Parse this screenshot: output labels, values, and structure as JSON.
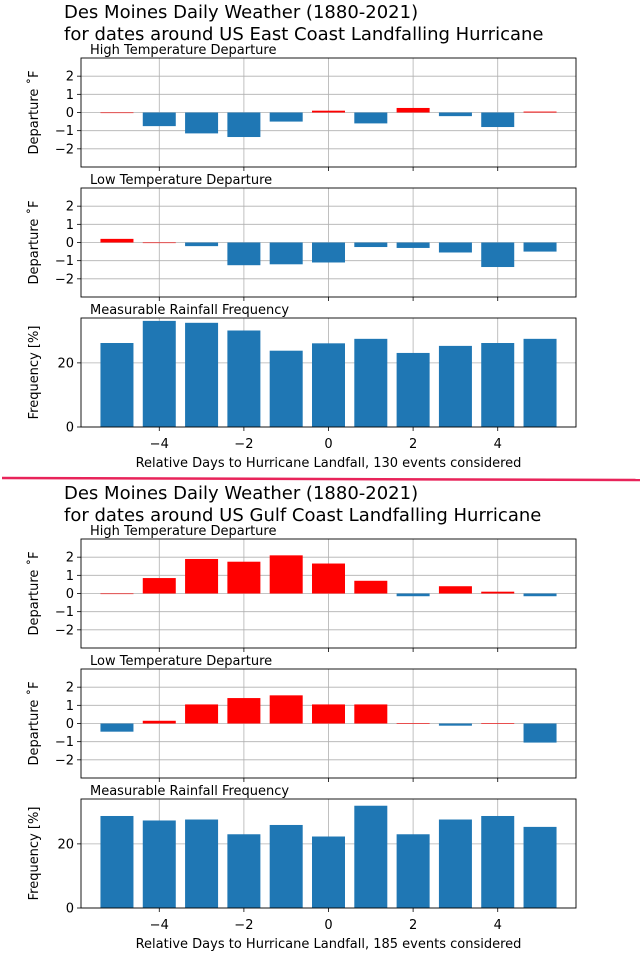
{
  "colors": {
    "positive": "#ff0000",
    "negative": "#1f77b4",
    "rain": "#1f77b4",
    "divider": "#e8245a",
    "grid": "#b0b0b0"
  },
  "chart_data": [
    {
      "title_line1": "Des Moines Daily Weather (1880-2021)",
      "title_line2": "for dates around US East Coast Landfalling Hurricane",
      "xlabel": "Relative Days to Hurricane Landfall, 130 events considered",
      "xticks": [
        "−4",
        "−2",
        "0",
        "2",
        "4"
      ],
      "panels": [
        {
          "type": "bar",
          "subtitle": "High Temperature Departure",
          "ylabel": "Departure ˚F",
          "ylim": [
            -3,
            3
          ],
          "yticks": [
            "−2",
            "−1",
            "0",
            "1",
            "2"
          ],
          "colored": true,
          "x": [
            -5,
            -4,
            -3,
            -2,
            -1,
            0,
            1,
            2,
            3,
            4,
            5
          ],
          "values": [
            0,
            -0.75,
            -1.15,
            -1.35,
            -0.5,
            0.1,
            -0.6,
            0.25,
            -0.2,
            -0.8,
            0.05
          ]
        },
        {
          "type": "bar",
          "subtitle": "Low Temperature Departure",
          "ylabel": "Departure ˚F",
          "ylim": [
            -3,
            3
          ],
          "yticks": [
            "−2",
            "−1",
            "0",
            "1",
            "2"
          ],
          "colored": true,
          "x": [
            -5,
            -4,
            -3,
            -2,
            -1,
            0,
            1,
            2,
            3,
            4,
            5
          ],
          "values": [
            0.2,
            0,
            -0.2,
            -1.25,
            -1.2,
            -1.1,
            -0.25,
            -0.3,
            -0.55,
            -1.35,
            -0.5
          ]
        },
        {
          "type": "bar",
          "subtitle": "Measurable Rainfall Frequency",
          "ylabel": "Frequency [%]",
          "ylim": [
            0,
            34
          ],
          "yticks": [
            "0",
            "20"
          ],
          "colored": false,
          "x": [
            -5,
            -4,
            -3,
            -2,
            -1,
            0,
            1,
            2,
            3,
            4,
            5
          ],
          "values": [
            26.2,
            33.1,
            32.5,
            30.1,
            23.8,
            26.1,
            27.5,
            23.1,
            25.3,
            26.2,
            27.5
          ]
        }
      ]
    },
    {
      "title_line1": "Des Moines Daily Weather (1880-2021)",
      "title_line2": "for dates around US Gulf Coast Landfalling Hurricane",
      "xlabel": "Relative Days to Hurricane Landfall, 185 events considered",
      "xticks": [
        "−4",
        "−2",
        "0",
        "2",
        "4"
      ],
      "panels": [
        {
          "type": "bar",
          "subtitle": "High Temperature Departure",
          "ylabel": "Departure ˚F",
          "ylim": [
            -3,
            3
          ],
          "yticks": [
            "−2",
            "−1",
            "0",
            "1",
            "2"
          ],
          "colored": true,
          "x": [
            -5,
            -4,
            -3,
            -2,
            -1,
            0,
            1,
            2,
            3,
            4,
            5
          ],
          "values": [
            0,
            0.85,
            1.9,
            1.75,
            2.1,
            1.65,
            0.7,
            -0.15,
            0.4,
            0.1,
            -0.15
          ]
        },
        {
          "type": "bar",
          "subtitle": "Low Temperature Departure",
          "ylabel": "Departure ˚F",
          "ylim": [
            -3,
            3
          ],
          "yticks": [
            "−2",
            "−1",
            "0",
            "1",
            "2"
          ],
          "colored": true,
          "x": [
            -5,
            -4,
            -3,
            -2,
            -1,
            0,
            1,
            2,
            3,
            4,
            5
          ],
          "values": [
            -0.45,
            0.15,
            1.05,
            1.4,
            1.55,
            1.05,
            1.05,
            0.02,
            -0.12,
            0.02,
            -1.05
          ]
        },
        {
          "type": "bar",
          "subtitle": "Measurable Rainfall Frequency",
          "ylabel": "Frequency [%]",
          "ylim": [
            0,
            34
          ],
          "yticks": [
            "0",
            "20"
          ],
          "colored": false,
          "x": [
            -5,
            -4,
            -3,
            -2,
            -1,
            0,
            1,
            2,
            3,
            4,
            5
          ],
          "values": [
            28.7,
            27.3,
            27.6,
            23.0,
            25.9,
            22.3,
            31.9,
            23.0,
            27.6,
            28.7,
            25.3
          ]
        }
      ]
    }
  ]
}
